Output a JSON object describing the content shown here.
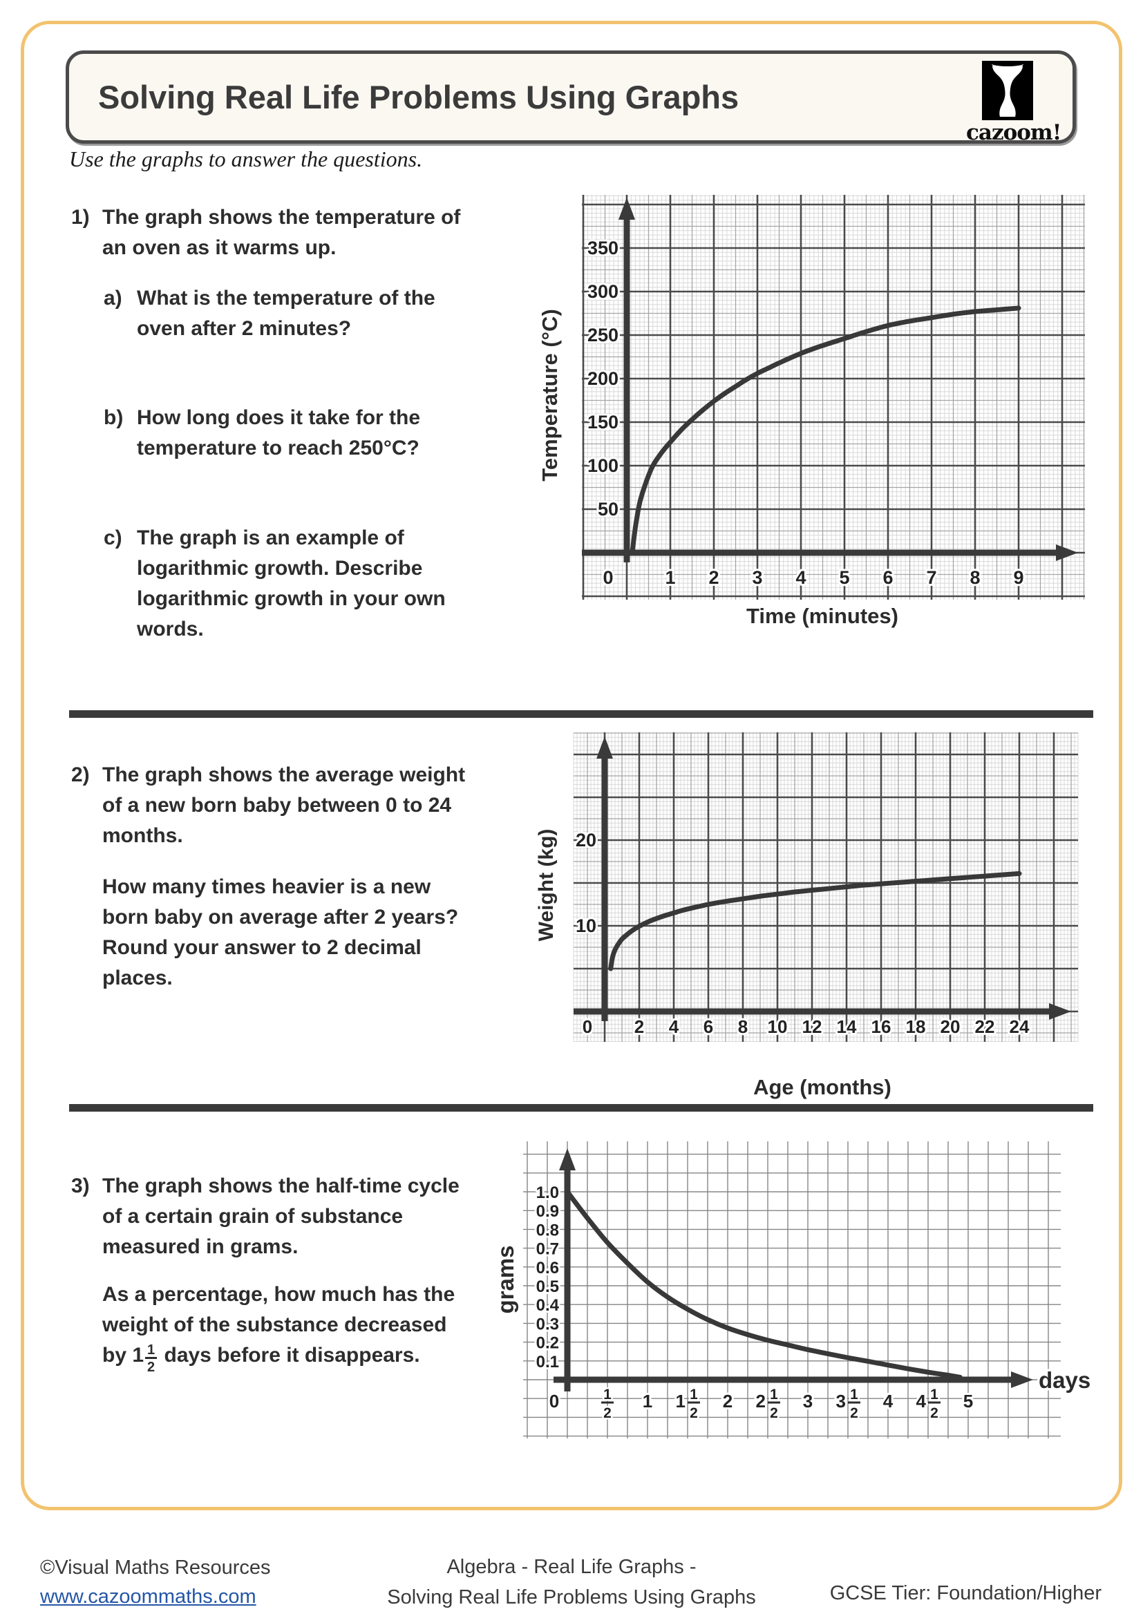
{
  "page": {
    "title": "Solving Real Life Problems Using Graphs",
    "intro": "Use the graphs to answer the questions.",
    "logo": {
      "text": "cazoom!"
    },
    "border_color": "#F2C36E"
  },
  "questions": {
    "q1": {
      "number": "1)",
      "text": "The graph shows the temperature of\nan oven as it warms up.",
      "parts": [
        {
          "letter": "a)",
          "text": "What is the temperature of the\noven after 2 minutes?"
        },
        {
          "letter": "b)",
          "text": "How long does it take for the\ntemperature to reach 250°C?"
        },
        {
          "letter": "c)",
          "text": "The graph is an example of\nlogarithmic growth. Describe\nlogarithmic growth in your own\nwords."
        }
      ]
    },
    "q2": {
      "number": "2)",
      "text": "The graph shows the average weight\nof a new born baby between 0 to 24\nmonths.",
      "text2": "How many times heavier is a new\nborn baby on average after 2 years?\nRound your answer to 2 decimal\nplaces."
    },
    "q3": {
      "number": "3)",
      "text": "The graph shows the half-time cycle\nof a certain grain of substance\nmeasured in grams.",
      "text2_lines": "As a percentage, how much has the\nweight of the substance decreased",
      "text2_pre": "by 1",
      "frac_num": "1",
      "frac_den": "2",
      "text2_post": " days before it disappears."
    }
  },
  "footer": {
    "left_line1": "©Visual Maths Resources",
    "left_line2": "www.cazoommaths.com",
    "center_line1": "Algebra - Real Life Graphs -",
    "center_line2": "Solving Real Life Problems Using Graphs",
    "right": "GCSE Tier: Foundation/Higher"
  },
  "chart_data": [
    {
      "type": "line",
      "xlabel": "Time (minutes)",
      "ylabel": "Temperature (°C)",
      "xticks": [
        0,
        1,
        2,
        3,
        4,
        5,
        6,
        7,
        8,
        9
      ],
      "yticks": [
        50,
        100,
        150,
        200,
        250,
        300,
        350
      ],
      "xlim": [
        0,
        9.8
      ],
      "ylim": [
        0,
        400
      ],
      "grid": "graph-paper",
      "points": [
        [
          0.13,
          2
        ],
        [
          0.2,
          30
        ],
        [
          0.3,
          58
        ],
        [
          0.45,
          82
        ],
        [
          0.6,
          100
        ],
        [
          0.8,
          115
        ],
        [
          1,
          127
        ],
        [
          1.25,
          141
        ],
        [
          1.5,
          153
        ],
        [
          1.75,
          164
        ],
        [
          2,
          174
        ],
        [
          2.25,
          183
        ],
        [
          2.5,
          191
        ],
        [
          2.75,
          199
        ],
        [
          3,
          206
        ],
        [
          3.25,
          212
        ],
        [
          3.5,
          218
        ],
        [
          4,
          229
        ],
        [
          4.5,
          238
        ],
        [
          5,
          246
        ],
        [
          5.5,
          254
        ],
        [
          6,
          261
        ],
        [
          6.5,
          266
        ],
        [
          7,
          270
        ],
        [
          7.5,
          274
        ],
        [
          8,
          277
        ],
        [
          8.5,
          279
        ],
        [
          9,
          281
        ]
      ]
    },
    {
      "type": "line",
      "xlabel": "Age (months)",
      "ylabel": "Weight (kg)",
      "xticks": [
        0,
        2,
        4,
        6,
        8,
        10,
        12,
        14,
        16,
        18,
        20,
        22,
        24
      ],
      "yticks": [
        10,
        20
      ],
      "xlim": [
        0,
        26
      ],
      "ylim": [
        0,
        27
      ],
      "grid": "graph-paper",
      "points": [
        [
          0.35,
          5
        ],
        [
          0.45,
          6.3
        ],
        [
          0.6,
          7.2
        ],
        [
          0.8,
          7.9
        ],
        [
          1,
          8.45
        ],
        [
          1.25,
          8.9
        ],
        [
          1.5,
          9.3
        ],
        [
          1.75,
          9.65
        ],
        [
          2,
          9.95
        ],
        [
          2.5,
          10.45
        ],
        [
          3,
          10.85
        ],
        [
          3.5,
          11.2
        ],
        [
          4,
          11.5
        ],
        [
          4.5,
          11.8
        ],
        [
          5,
          12.05
        ],
        [
          6,
          12.5
        ],
        [
          7,
          12.85
        ],
        [
          8,
          13.15
        ],
        [
          9,
          13.45
        ],
        [
          10,
          13.7
        ],
        [
          11,
          13.95
        ],
        [
          12,
          14.15
        ],
        [
          13,
          14.35
        ],
        [
          14,
          14.55
        ],
        [
          15,
          14.75
        ],
        [
          16,
          14.9
        ],
        [
          17,
          15.05
        ],
        [
          18,
          15.2
        ],
        [
          19,
          15.35
        ],
        [
          20,
          15.5
        ],
        [
          21,
          15.65
        ],
        [
          22,
          15.8
        ],
        [
          23,
          15.95
        ],
        [
          24,
          16.1
        ]
      ]
    },
    {
      "type": "line",
      "xlabel": "days",
      "ylabel": "grams",
      "xticks": [
        "0",
        "1/2",
        "1",
        "1 1/2",
        "2",
        "2 1/2",
        "3",
        "3 1/2",
        "4",
        "4 1/2",
        "5"
      ],
      "yticks": [
        "0.1",
        "0.2",
        "0.3",
        "0.4",
        "0.5",
        "0.6",
        "0.7",
        "0.8",
        "0.9",
        "1.0"
      ],
      "xlim": [
        0,
        5.7
      ],
      "ylim": [
        0,
        1.25
      ],
      "grid": "plain",
      "points": [
        [
          0,
          1.0
        ],
        [
          0.25,
          0.86
        ],
        [
          0.5,
          0.73
        ],
        [
          0.75,
          0.62
        ],
        [
          1,
          0.52
        ],
        [
          1.25,
          0.44
        ],
        [
          1.5,
          0.375
        ],
        [
          1.75,
          0.32
        ],
        [
          2,
          0.275
        ],
        [
          2.25,
          0.24
        ],
        [
          2.5,
          0.21
        ],
        [
          2.75,
          0.185
        ],
        [
          3,
          0.16
        ],
        [
          3.25,
          0.138
        ],
        [
          3.5,
          0.117
        ],
        [
          3.75,
          0.098
        ],
        [
          4,
          0.078
        ],
        [
          4.25,
          0.058
        ],
        [
          4.5,
          0.04
        ],
        [
          4.75,
          0.024
        ],
        [
          4.9,
          0.013
        ]
      ]
    }
  ]
}
